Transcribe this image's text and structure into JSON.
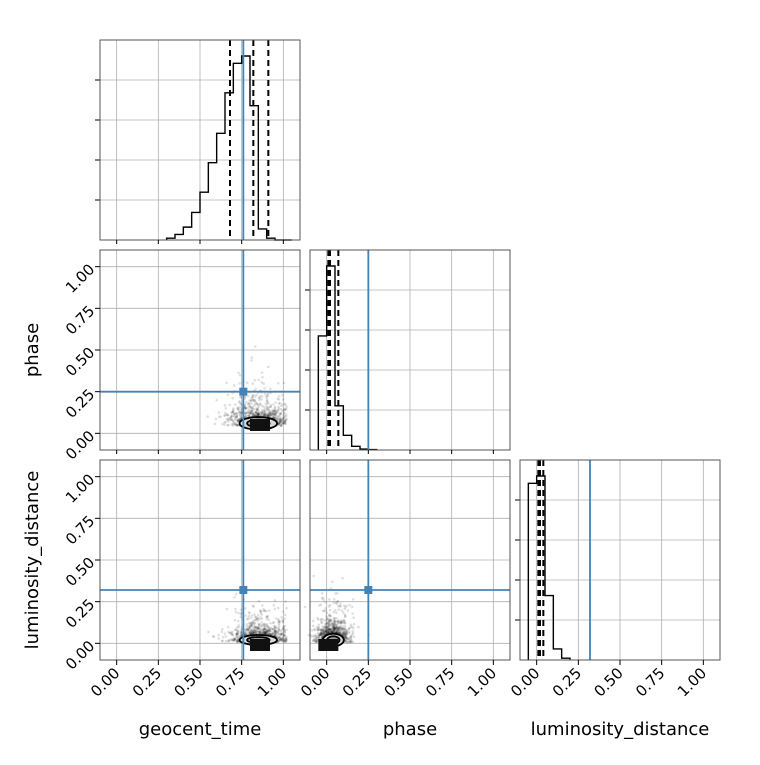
{
  "chart_data": {
    "type": "corner",
    "parameters": [
      "geocent_time",
      "phase",
      "luminosity_distance"
    ],
    "axis_range": [
      -0.1,
      1.1
    ],
    "tick_labels": [
      "0.00",
      "0.25",
      "0.50",
      "0.75",
      "1.00"
    ],
    "tick_values": [
      0,
      0.25,
      0.5,
      0.75,
      1.0
    ],
    "injection": {
      "geocent_time": 0.76,
      "phase": 0.25,
      "luminosity_distance": 0.32
    },
    "truth_color": "#4682b4",
    "grid": true,
    "histograms": {
      "geocent_time": {
        "edges": [
          0.3,
          0.35,
          0.4,
          0.45,
          0.5,
          0.55,
          0.6,
          0.65,
          0.7,
          0.75,
          0.8,
          0.85,
          0.9,
          0.95,
          1.0,
          1.05
        ],
        "values": [
          0.01,
          0.03,
          0.07,
          0.15,
          0.26,
          0.42,
          0.58,
          0.8,
          0.96,
          1.0,
          0.73,
          0.06,
          0.01,
          0,
          0
        ],
        "quantiles": [
          0.68,
          0.82,
          0.91
        ]
      },
      "phase": {
        "edges": [
          -0.05,
          0.0,
          0.05,
          0.1,
          0.15,
          0.2,
          0.25,
          0.3
        ],
        "values": [
          0.62,
          1.0,
          0.24,
          0.08,
          0.02,
          0.005,
          0.002
        ],
        "quantiles": [
          0.01,
          0.02,
          0.07
        ]
      },
      "luminosity_distance": {
        "edges": [
          -0.05,
          0.0,
          0.05,
          0.1,
          0.15,
          0.2
        ],
        "values": [
          0.96,
          1.0,
          0.35,
          0.06,
          0.01
        ],
        "quantiles": [
          0.01,
          0.02,
          0.04
        ]
      }
    },
    "scatter_panels": [
      {
        "x": "geocent_time",
        "y": "phase",
        "center": [
          0.85,
          0.06
        ],
        "spread": [
          0.09,
          0.05
        ],
        "marker": [
          0.86,
          0.05
        ]
      },
      {
        "x": "geocent_time",
        "y": "luminosity_distance",
        "center": [
          0.85,
          0.02
        ],
        "spread": [
          0.09,
          0.04
        ],
        "marker": [
          0.86,
          -0.01
        ]
      },
      {
        "x": "phase",
        "y": "luminosity_distance",
        "center": [
          0.04,
          0.02
        ],
        "spread": [
          0.05,
          0.05
        ],
        "marker": [
          0.01,
          -0.01
        ]
      }
    ],
    "xlabels": [
      "geocent_time",
      "phase",
      "luminosity_distance"
    ],
    "ylabels": [
      "",
      "phase",
      "luminosity_distance"
    ]
  }
}
